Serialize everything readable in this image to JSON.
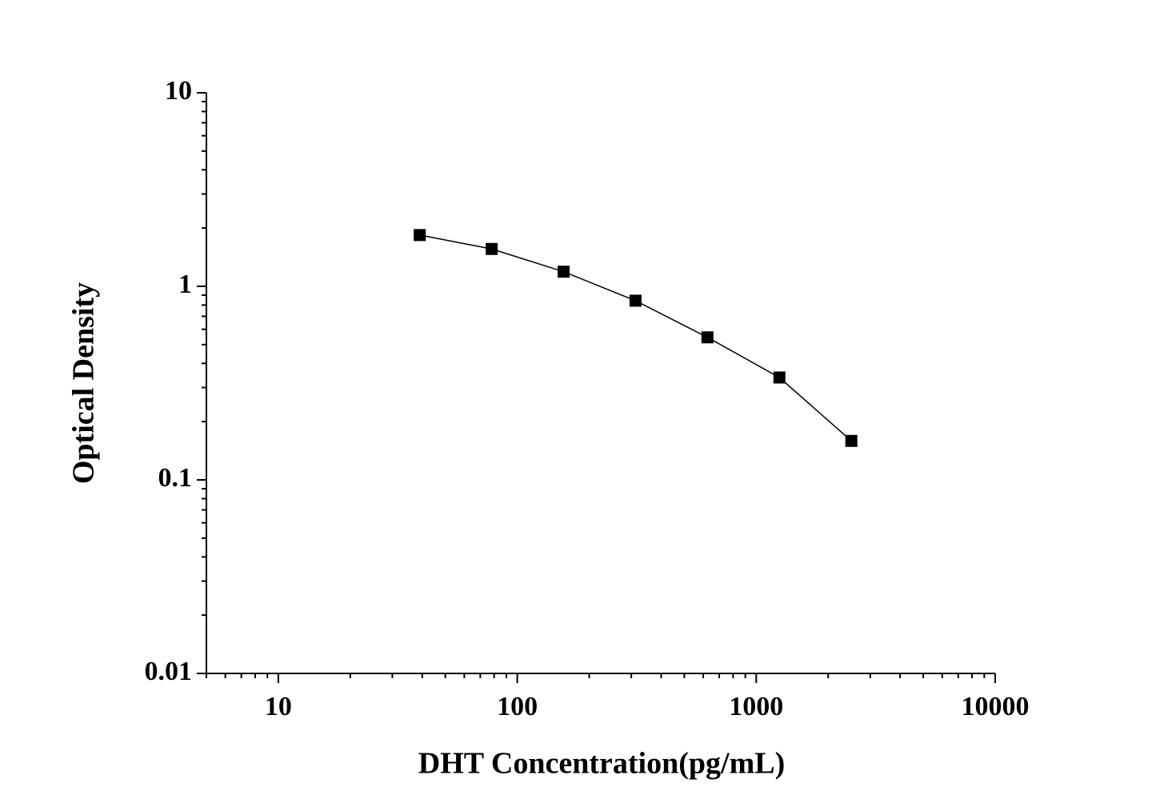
{
  "chart_data": {
    "type": "line",
    "x_label": "DHT Concentration(pg/mL)",
    "y_label": "Optical Density",
    "x": [
      39.06,
      78.13,
      156.25,
      312.5,
      625,
      1250,
      2500
    ],
    "series": [
      {
        "color": "#000000",
        "marker": "square",
        "values": [
          1.84,
          1.56,
          1.19,
          0.843,
          0.545,
          0.338,
          0.159
        ]
      }
    ],
    "xlim": [
      5,
      10000
    ],
    "ylim": [
      0.01,
      10
    ],
    "xticks": [
      10,
      100,
      1000,
      10000
    ],
    "yticks": [
      0.01,
      0.1,
      1,
      10
    ],
    "xscale": "log",
    "yscale": "log",
    "grid": false
  }
}
